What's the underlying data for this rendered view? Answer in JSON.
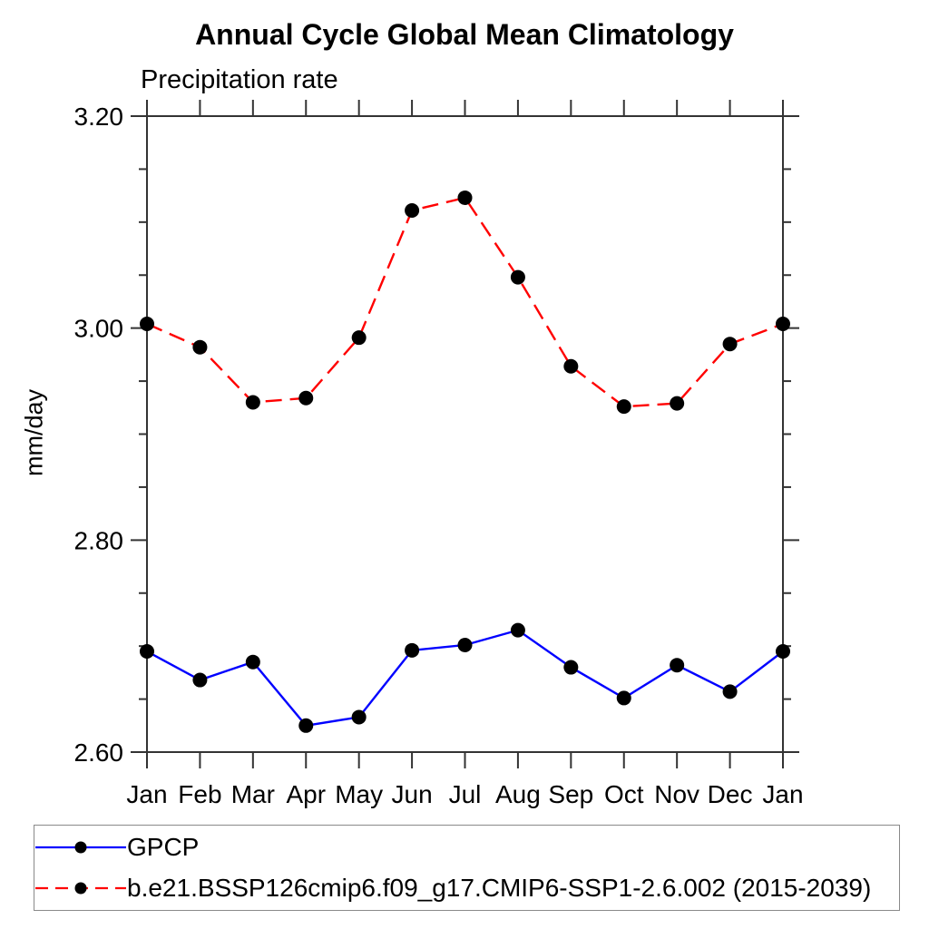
{
  "title": "Annual Cycle Global Mean Climatology",
  "chart_data": {
    "type": "line",
    "title": "Annual Cycle Global Mean Climatology",
    "subtitle": "Precipitation rate",
    "ylabel": "mm/day",
    "xlabel": "",
    "categories": [
      "Jan",
      "Feb",
      "Mar",
      "Apr",
      "May",
      "Jun",
      "Jul",
      "Aug",
      "Sep",
      "Oct",
      "Nov",
      "Dec",
      "Jan"
    ],
    "ylim": [
      2.6,
      3.2
    ],
    "ytick_labels": [
      "2.60",
      "2.80",
      "3.00",
      "3.20"
    ],
    "yticks": [
      2.6,
      2.8,
      3.0,
      3.2
    ],
    "minor_tick_step": 0.05,
    "grid": "off",
    "legend_position": "bottom-left-box",
    "axis_color": "#333333",
    "marker_color": "#000000",
    "series": [
      {
        "name": "GPCP",
        "color": "#0000ff",
        "line_style": "solid",
        "marker": "circle",
        "values": [
          2.695,
          2.668,
          2.685,
          2.625,
          2.633,
          2.696,
          2.701,
          2.715,
          2.68,
          2.651,
          2.682,
          2.657,
          2.695
        ]
      },
      {
        "name": "b.e21.BSSP126cmip6.f09_g17.CMIP6-SSP1-2.6.002 (2015-2039)",
        "color": "#ff0000",
        "line_style": "dashed",
        "marker": "circle",
        "values": [
          3.004,
          2.982,
          2.93,
          2.934,
          2.991,
          3.111,
          3.123,
          3.048,
          2.964,
          2.926,
          2.929,
          2.985,
          3.004
        ]
      }
    ]
  }
}
